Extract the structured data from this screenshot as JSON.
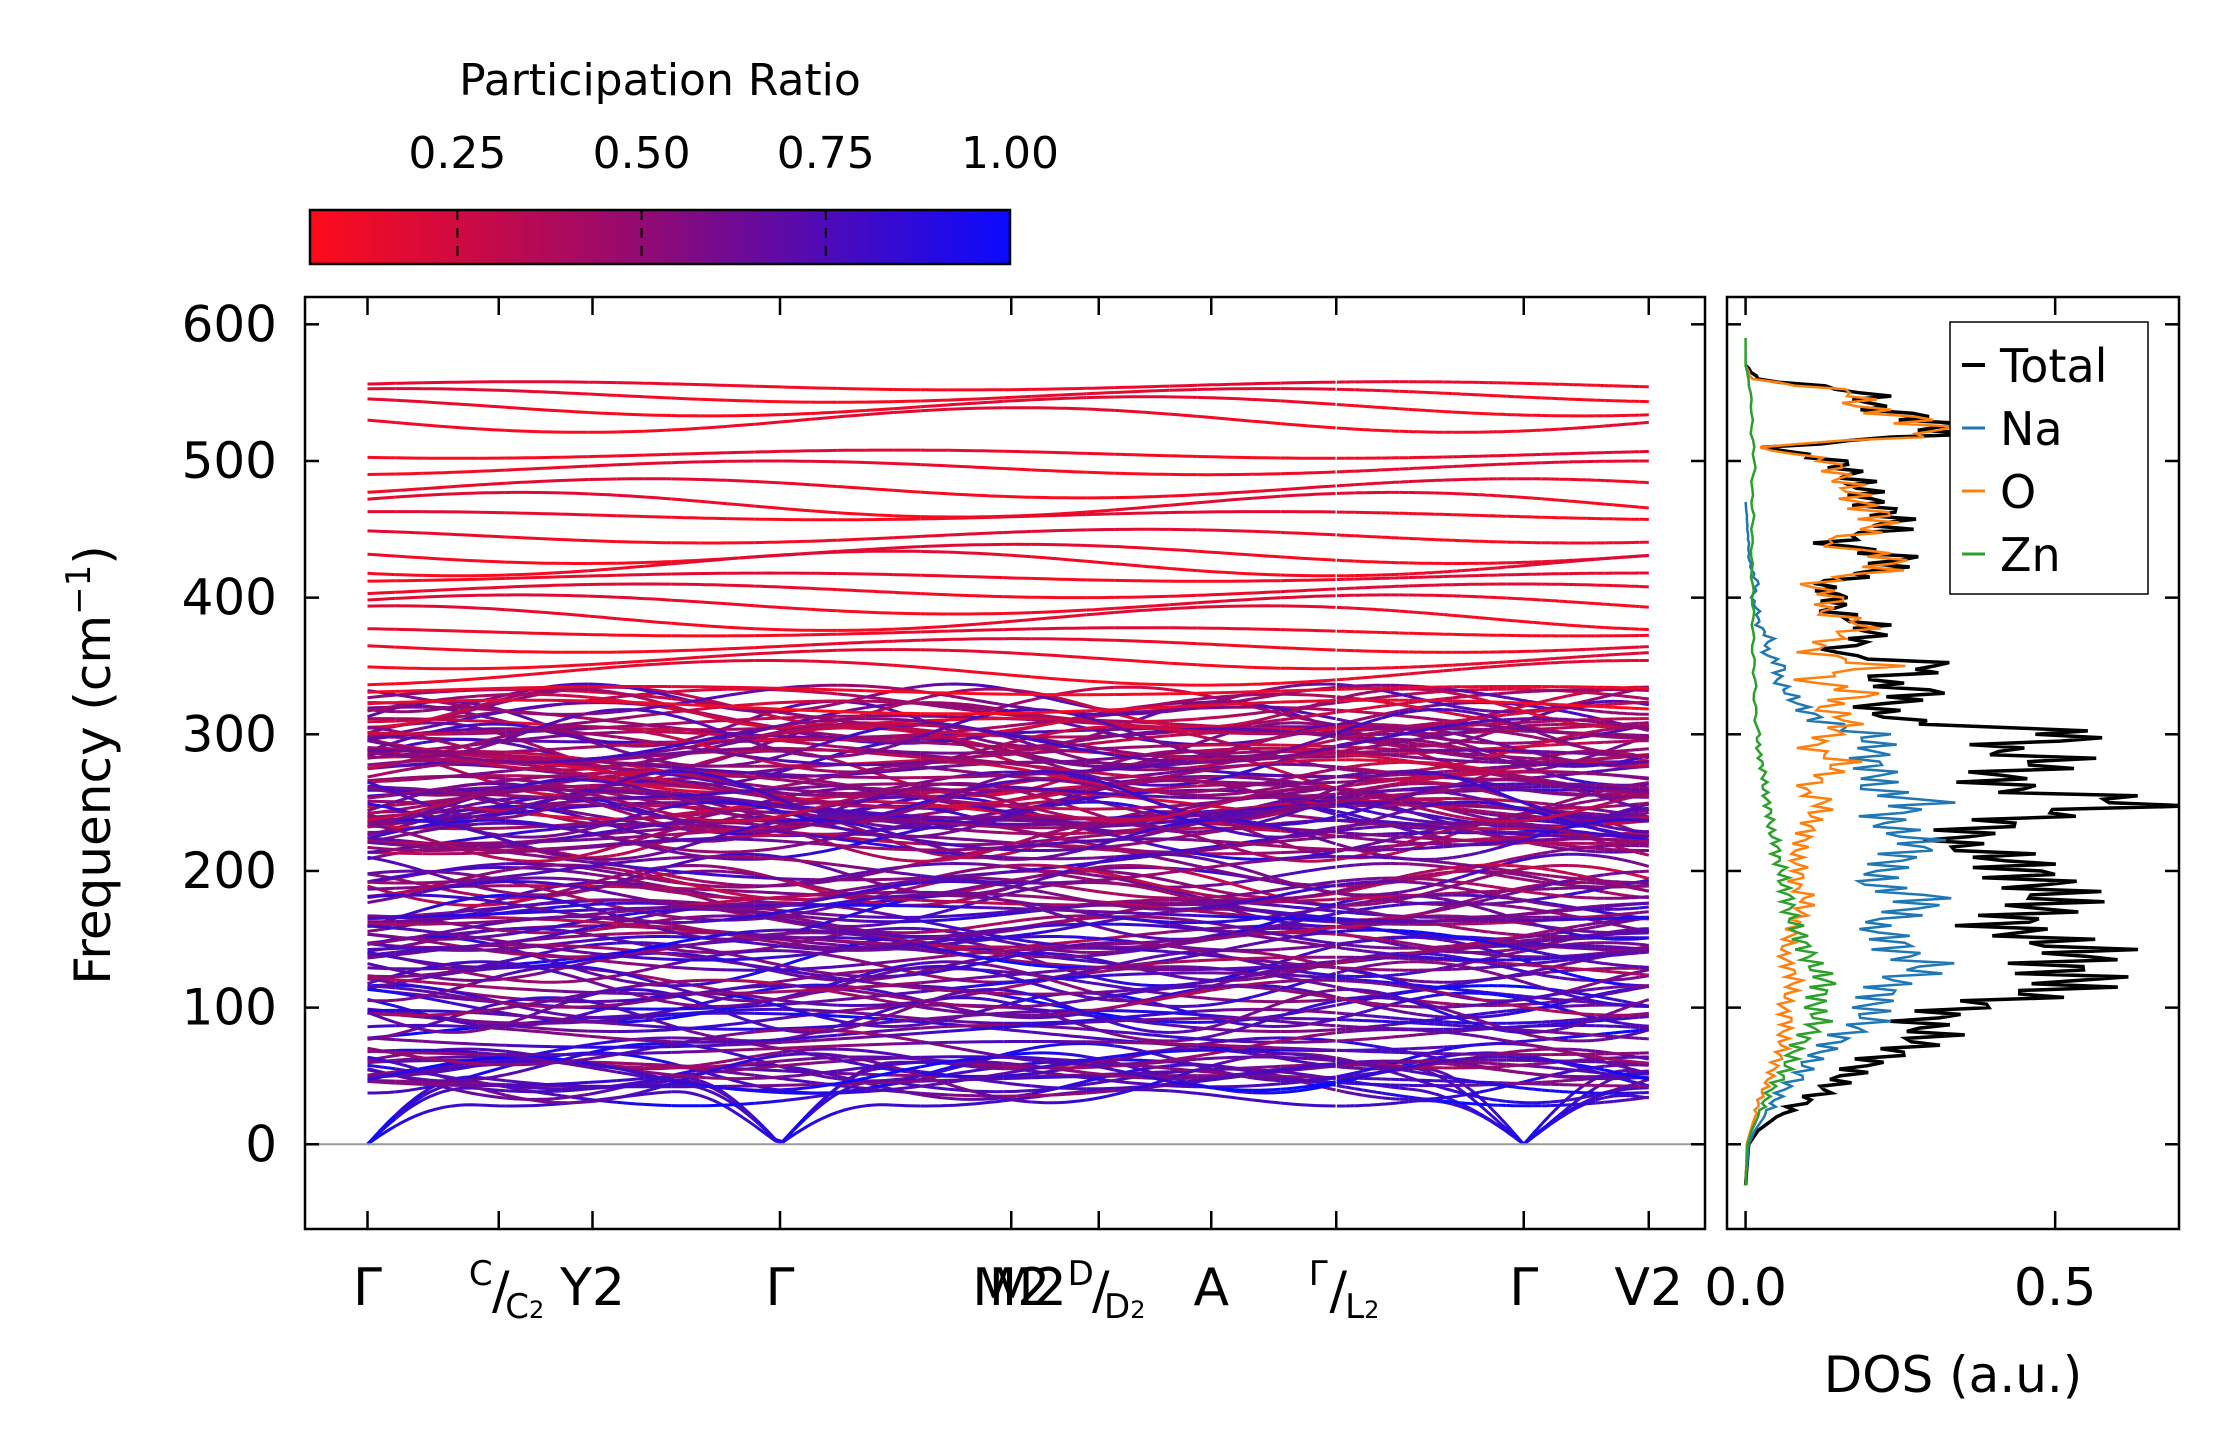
{
  "chart_data": [
    {
      "type": "line",
      "panel": "phonon-band-structure",
      "ylabel_main": "Frequency (cm",
      "ylabel_sup": "−1",
      "ylabel_close": ")",
      "ylim": [
        -62,
        620
      ],
      "yticks": [
        0,
        100,
        200,
        300,
        400,
        500,
        600
      ],
      "xlim": [
        0,
        11.2
      ],
      "high_symmetry_points": [
        {
          "x": 0.5,
          "label": "Γ",
          "sub": ""
        },
        {
          "x": 1.55,
          "label": "",
          "sub": ""
        },
        {
          "x": 2.3,
          "label": "Y",
          "sub": "2"
        },
        {
          "x": 3.8,
          "label": "Γ",
          "sub": ""
        },
        {
          "x": 5.65,
          "label": "M",
          "sub": "2"
        },
        {
          "x": 6.35,
          "label": "",
          "sub": ""
        },
        {
          "x": 7.25,
          "label": "A",
          "sub": ""
        },
        {
          "x": 8.25,
          "label": "",
          "sub": ""
        },
        {
          "x": 9.75,
          "label": "Γ",
          "sub": ""
        },
        {
          "x": 10.75,
          "label": "V",
          "sub": "2"
        }
      ],
      "split_labels": [
        {
          "x": 1.55,
          "top": "C",
          "bottom": "C",
          "bottom_sub": "2"
        },
        {
          "x": 6.35,
          "top": "D",
          "bottom": "D",
          "bottom_sub": "2",
          "prefix": "M",
          "prefix_sub": "2"
        },
        {
          "x": 8.25,
          "top": "Γ",
          "bottom": "L",
          "bottom_sub": "2"
        }
      ],
      "band_frequency_range_cm1": [
        0,
        562
      ],
      "acoustic_branches_end_cm1": [
        60,
        58,
        55,
        40
      ],
      "optical_band_levels_cm1_high": [
        555,
        548,
        540,
        530,
        505,
        495,
        480,
        468,
        460,
        445,
        432,
        425,
        415,
        405,
        395,
        385,
        375,
        365,
        355,
        345,
        332,
        320
      ],
      "colorbar": {
        "label": "Participation Ratio",
        "ticks": [
          "0.25",
          "0.50",
          "0.75",
          "1.00"
        ],
        "tick_values": [
          0.25,
          0.5,
          0.75,
          1.0
        ],
        "range": [
          0.05,
          1.0
        ],
        "color_low": "#ff0b1a",
        "color_mid": "#8c0a78",
        "color_high": "#0a0aff"
      }
    },
    {
      "type": "line",
      "panel": "density-of-states",
      "xlabel": "DOS (a.u.)",
      "xlim": [
        -0.03,
        0.7
      ],
      "xticks": [
        "0.0",
        "0.5"
      ],
      "xtick_values": [
        0.0,
        0.5
      ],
      "ylim": [
        -62,
        620
      ],
      "legend_position": "top-right",
      "series": [
        {
          "name": "Total",
          "color": "#000000",
          "freq": [
            -30,
            0,
            10,
            20,
            30,
            40,
            50,
            60,
            70,
            80,
            90,
            100,
            110,
            120,
            130,
            140,
            150,
            160,
            170,
            180,
            190,
            200,
            210,
            220,
            230,
            240,
            250,
            260,
            270,
            280,
            290,
            300,
            310,
            320,
            330,
            340,
            350,
            360,
            370,
            380,
            390,
            400,
            410,
            420,
            430,
            440,
            450,
            460,
            470,
            480,
            490,
            500,
            510,
            520,
            530,
            540,
            550,
            560,
            570
          ],
          "dos": [
            0.0,
            0.005,
            0.02,
            0.05,
            0.09,
            0.13,
            0.16,
            0.2,
            0.26,
            0.3,
            0.28,
            0.35,
            0.47,
            0.55,
            0.5,
            0.56,
            0.48,
            0.41,
            0.47,
            0.5,
            0.48,
            0.45,
            0.42,
            0.33,
            0.37,
            0.46,
            0.66,
            0.43,
            0.4,
            0.51,
            0.39,
            0.57,
            0.25,
            0.2,
            0.3,
            0.2,
            0.33,
            0.13,
            0.2,
            0.2,
            0.14,
            0.15,
            0.12,
            0.22,
            0.25,
            0.13,
            0.23,
            0.24,
            0.2,
            0.19,
            0.17,
            0.15,
            0.03,
            0.33,
            0.3,
            0.2,
            0.2,
            0.02,
            0.0
          ]
        },
        {
          "name": "Na",
          "color": "#1f77b4",
          "freq": [
            -30,
            0,
            10,
            20,
            30,
            40,
            50,
            60,
            70,
            80,
            90,
            100,
            110,
            120,
            130,
            140,
            150,
            160,
            170,
            180,
            190,
            200,
            210,
            220,
            230,
            240,
            250,
            260,
            270,
            280,
            290,
            300,
            310,
            320,
            330,
            340,
            350,
            360,
            370,
            380,
            390,
            400,
            410,
            420,
            430,
            440,
            450,
            460,
            470
          ],
          "dos": [
            0.0,
            0.005,
            0.015,
            0.03,
            0.045,
            0.06,
            0.09,
            0.1,
            0.13,
            0.16,
            0.2,
            0.2,
            0.22,
            0.24,
            0.3,
            0.25,
            0.24,
            0.2,
            0.26,
            0.3,
            0.2,
            0.22,
            0.25,
            0.29,
            0.24,
            0.22,
            0.3,
            0.2,
            0.22,
            0.2,
            0.21,
            0.2,
            0.12,
            0.09,
            0.07,
            0.05,
            0.06,
            0.03,
            0.04,
            0.02,
            0.02,
            0.01,
            0.02,
            0.01,
            0.005,
            0.005,
            0.003,
            0.002,
            0.0
          ]
        },
        {
          "name": "O",
          "color": "#ff7f0e",
          "freq": [
            -30,
            0,
            10,
            20,
            30,
            40,
            50,
            60,
            70,
            80,
            90,
            100,
            110,
            120,
            130,
            140,
            150,
            160,
            170,
            180,
            190,
            200,
            210,
            220,
            230,
            240,
            250,
            260,
            270,
            280,
            290,
            300,
            310,
            320,
            330,
            340,
            350,
            360,
            370,
            380,
            390,
            400,
            410,
            420,
            430,
            440,
            450,
            460,
            470,
            480,
            490,
            500,
            510,
            520,
            530,
            540,
            550,
            560,
            570
          ],
          "dos": [
            0.0,
            0.002,
            0.008,
            0.015,
            0.02,
            0.03,
            0.04,
            0.05,
            0.06,
            0.06,
            0.07,
            0.06,
            0.07,
            0.08,
            0.07,
            0.06,
            0.07,
            0.08,
            0.09,
            0.1,
            0.08,
            0.09,
            0.08,
            0.09,
            0.1,
            0.11,
            0.13,
            0.09,
            0.13,
            0.16,
            0.1,
            0.14,
            0.17,
            0.12,
            0.2,
            0.09,
            0.22,
            0.1,
            0.14,
            0.2,
            0.12,
            0.15,
            0.1,
            0.22,
            0.24,
            0.12,
            0.21,
            0.22,
            0.18,
            0.17,
            0.15,
            0.14,
            0.02,
            0.32,
            0.28,
            0.18,
            0.18,
            0.01,
            0.0
          ]
        },
        {
          "name": "Zn",
          "color": "#2ca02c",
          "freq": [
            -30,
            0,
            10,
            20,
            30,
            40,
            50,
            60,
            70,
            80,
            90,
            100,
            110,
            120,
            130,
            140,
            150,
            160,
            170,
            180,
            190,
            200,
            210,
            220,
            230,
            240,
            250,
            260,
            270,
            280,
            290,
            300,
            320,
            340,
            360,
            380,
            400,
            420,
            440,
            460,
            480,
            500,
            520,
            540,
            560,
            570,
            590
          ],
          "dos": [
            0.0,
            0.003,
            0.01,
            0.02,
            0.03,
            0.04,
            0.06,
            0.07,
            0.08,
            0.1,
            0.12,
            0.11,
            0.12,
            0.13,
            0.11,
            0.1,
            0.09,
            0.08,
            0.07,
            0.07,
            0.06,
            0.06,
            0.05,
            0.05,
            0.04,
            0.04,
            0.035,
            0.03,
            0.03,
            0.025,
            0.02,
            0.02,
            0.015,
            0.015,
            0.012,
            0.012,
            0.012,
            0.01,
            0.01,
            0.012,
            0.01,
            0.015,
            0.01,
            0.01,
            0.005,
            0.0,
            0.0
          ]
        }
      ]
    }
  ]
}
